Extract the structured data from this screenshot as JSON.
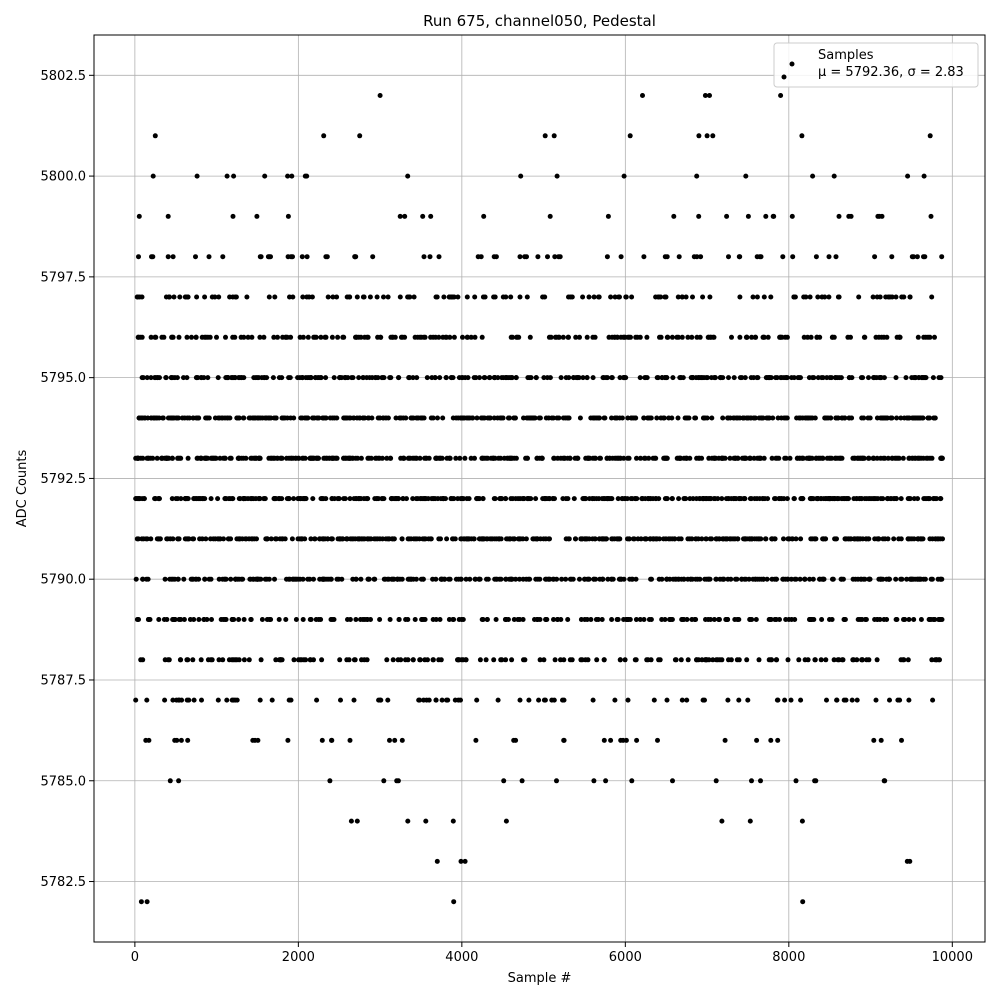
{
  "chart_data": {
    "type": "scatter",
    "title": "Run 675, channel050, Pedestal",
    "xlabel": "Sample #",
    "ylabel": "ADC Counts",
    "xlim": [
      -500,
      10400
    ],
    "ylim": [
      5781.0,
      5803.5
    ],
    "xticks": [
      0,
      2000,
      4000,
      6000,
      8000,
      10000
    ],
    "xtick_labels": [
      "0",
      "2000",
      "4000",
      "6000",
      "8000",
      "10000"
    ],
    "yticks": [
      5782.5,
      5785.0,
      5787.5,
      5790.0,
      5792.5,
      5795.0,
      5797.5,
      5800.0,
      5802.5
    ],
    "ytick_labels": [
      "5782.5",
      "5785.0",
      "5787.5",
      "5790.0",
      "5792.5",
      "5795.0",
      "5797.5",
      "5800.0",
      "5802.5"
    ],
    "grid": true,
    "legend": {
      "placement": "upper right",
      "label": "Samples",
      "stats_text": "μ = 5792.36, σ = 2.83"
    },
    "series": [
      {
        "name": "Samples",
        "color": "#000000",
        "marker": "circle",
        "x_range": [
          0,
          9880
        ],
        "mean": 5792.36,
        "std": 2.83,
        "n_points": 3200,
        "outliers": [
          {
            "x": 80,
            "y": 5782
          },
          {
            "x": 150,
            "y": 5782
          },
          {
            "x": 3900,
            "y": 5782
          },
          {
            "x": 8170,
            "y": 5782
          },
          {
            "x": 3700,
            "y": 5783
          },
          {
            "x": 3990,
            "y": 5783
          },
          {
            "x": 4040,
            "y": 5783
          },
          {
            "x": 9450,
            "y": 5783
          },
          {
            "x": 9480,
            "y": 5783
          },
          {
            "x": 250,
            "y": 5801
          },
          {
            "x": 2310,
            "y": 5801
          },
          {
            "x": 2750,
            "y": 5801
          },
          {
            "x": 5020,
            "y": 5801
          },
          {
            "x": 5130,
            "y": 5801
          },
          {
            "x": 6060,
            "y": 5801
          },
          {
            "x": 6900,
            "y": 5801
          },
          {
            "x": 7000,
            "y": 5801
          },
          {
            "x": 7070,
            "y": 5801
          },
          {
            "x": 8160,
            "y": 5801
          },
          {
            "x": 9730,
            "y": 5801
          },
          {
            "x": 3000,
            "y": 5802
          },
          {
            "x": 6210,
            "y": 5802
          },
          {
            "x": 6980,
            "y": 5802
          },
          {
            "x": 7030,
            "y": 5802
          },
          {
            "x": 7900,
            "y": 5802
          }
        ]
      }
    ]
  }
}
